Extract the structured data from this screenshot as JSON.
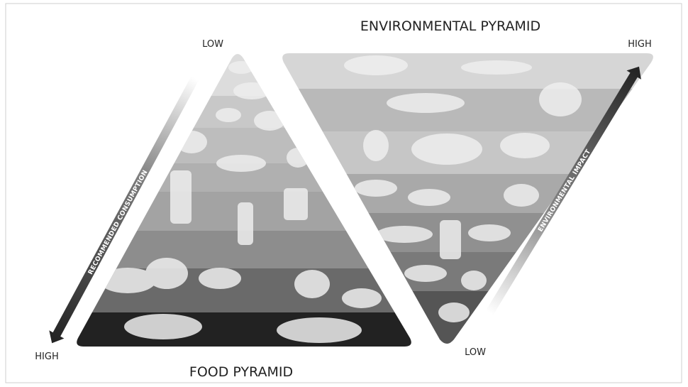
{
  "environmental_pyramid": {
    "title": "ENVIRONMENTAL PYRAMID",
    "axis_label": "ENVIRONMENTAL IMPACT",
    "top_label": "HIGH",
    "bottom_label": "LOW"
  },
  "food_pyramid": {
    "title": "FOOD PYRAMID",
    "axis_label": "RECOMMENDED CONSUMPTION",
    "top_label": "LOW",
    "bottom_label": "HIGH"
  }
}
